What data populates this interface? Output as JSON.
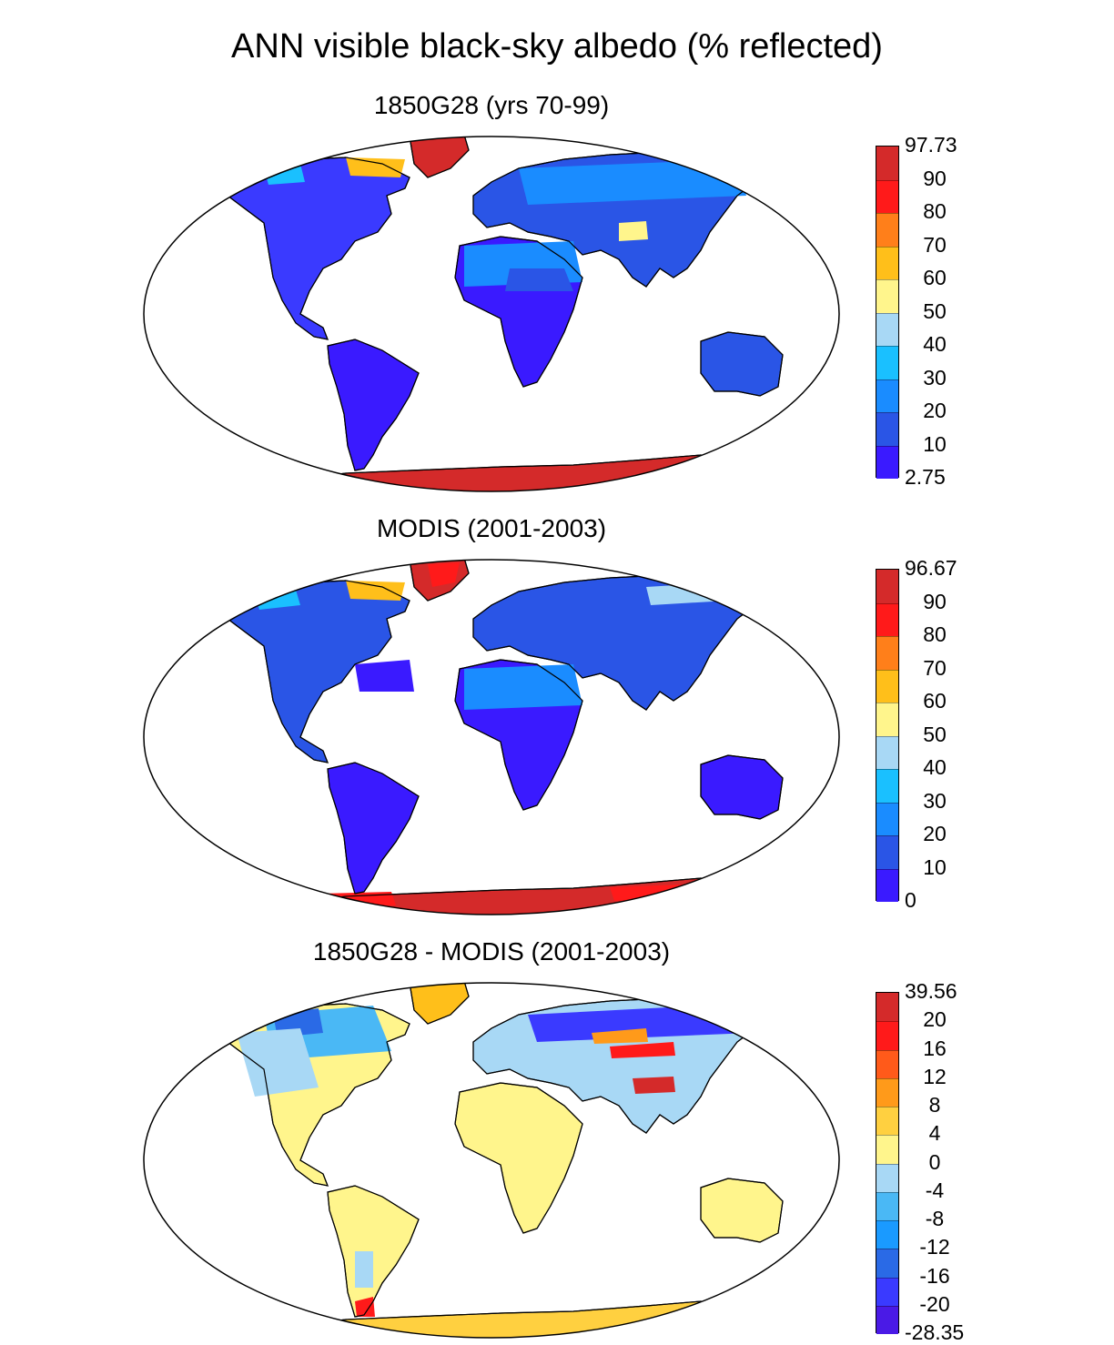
{
  "title": "ANN visible black-sky albedo (% reflected)",
  "panels": [
    {
      "title": "1850G28 (yrs 70-99)",
      "colorbar": {
        "labels": [
          "97.73",
          "90",
          "80",
          "70",
          "60",
          "50",
          "40",
          "30",
          "20",
          "10",
          "2.75"
        ],
        "colors": [
          "#d42a2a",
          "#ff1a1a",
          "#ff7f1a",
          "#ffbf1a",
          "#fff58c",
          "#a8d8f5",
          "#1ac0ff",
          "#1a8cff",
          "#2a55e6",
          "#3a1aff"
        ]
      },
      "map_style": "model"
    },
    {
      "title": "MODIS (2001-2003)",
      "colorbar": {
        "labels": [
          "96.67",
          "90",
          "80",
          "70",
          "60",
          "50",
          "40",
          "30",
          "20",
          "10",
          "0"
        ],
        "colors": [
          "#d42a2a",
          "#ff1a1a",
          "#ff7f1a",
          "#ffbf1a",
          "#fff58c",
          "#a8d8f5",
          "#1ac0ff",
          "#1a8cff",
          "#2a55e6",
          "#3a1aff"
        ]
      },
      "map_style": "obs"
    },
    {
      "title": "1850G28 - MODIS (2001-2003)",
      "colorbar": {
        "labels": [
          "39.56",
          "20",
          "16",
          "12",
          "8",
          "4",
          "0",
          "-4",
          "-8",
          "-12",
          "-16",
          "-20",
          "-28.35"
        ],
        "colors": [
          "#d42a2a",
          "#ff1a1a",
          "#ff5a1a",
          "#ff9a1a",
          "#ffd040",
          "#fff58c",
          "#a8d8f5",
          "#4ab8f5",
          "#1a9aff",
          "#2a6ae6",
          "#3a3aff",
          "#4a1ae6"
        ]
      },
      "map_style": "diff"
    }
  ]
}
